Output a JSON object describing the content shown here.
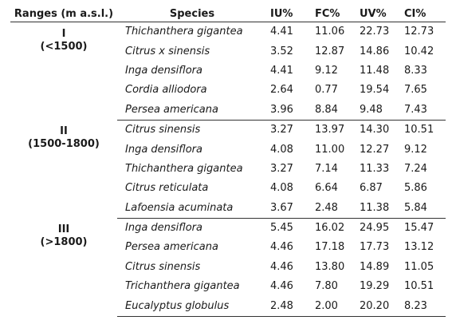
{
  "table": {
    "headers": {
      "range": "Ranges (m a.s.l.)",
      "species": "Species",
      "iu": "IU%",
      "fc": "FC%",
      "uv": "UV%",
      "ci": "CI%"
    },
    "groups": [
      {
        "range_num": "I",
        "range_sub": "(<1500)",
        "rows": [
          {
            "species": "Thichanthera gigantea",
            "iu": "4.41",
            "fc": "11.06",
            "uv": "22.73",
            "ci": "12.73"
          },
          {
            "species": "Citrus x sinensis",
            "iu": "3.52",
            "fc": "12.87",
            "uv": "14.86",
            "ci": "10.42"
          },
          {
            "species": "Inga densiflora",
            "iu": "4.41",
            "fc": "9.12",
            "uv": "11.48",
            "ci": "8.33"
          },
          {
            "species": "Cordia alliodora",
            "iu": "2.64",
            "fc": "0.77",
            "uv": "19.54",
            "ci": "7.65"
          },
          {
            "species": "Persea americana",
            "iu": "3.96",
            "fc": "8.84",
            "uv": "9.48",
            "ci": "7.43"
          }
        ]
      },
      {
        "range_num": "II",
        "range_sub": "(1500-1800)",
        "rows": [
          {
            "species": "Citrus sinensis",
            "iu": "3.27",
            "fc": "13.97",
            "uv": "14.30",
            "ci": "10.51"
          },
          {
            "species": "Inga densiflora",
            "iu": "4.08",
            "fc": "11.00",
            "uv": "12.27",
            "ci": "9.12"
          },
          {
            "species": "Thichanthera gigantea",
            "iu": "3.27",
            "fc": "7.14",
            "uv": "11.33",
            "ci": "7.24"
          },
          {
            "species": "Citrus reticulata",
            "iu": "4.08",
            "fc": "6.64",
            "uv": "6.87",
            "ci": "5.86"
          },
          {
            "species": "Lafoensia acuminata",
            "iu": "3.67",
            "fc": "2.48",
            "uv": "11.38",
            "ci": "5.84"
          }
        ]
      },
      {
        "range_num": "III",
        "range_sub": "(>1800)",
        "rows": [
          {
            "species": "Inga densiflora",
            "iu": "5.45",
            "fc": "16.02",
            "uv": "24.95",
            "ci": "15.47"
          },
          {
            "species": "Persea americana",
            "iu": "4.46",
            "fc": "17.18",
            "uv": "17.73",
            "ci": "13.12"
          },
          {
            "species": "Citrus sinensis",
            "iu": "4.46",
            "fc": "13.80",
            "uv": "14.89",
            "ci": "11.05"
          },
          {
            "species": "Trichanthera gigantea",
            "iu": "4.46",
            "fc": "7.80",
            "uv": "19.29",
            "ci": "10.51"
          },
          {
            "species": "Eucalyptus globulus",
            "iu": "2.48",
            "fc": "2.00",
            "uv": "20.20",
            "ci": "8.23"
          }
        ]
      }
    ]
  }
}
